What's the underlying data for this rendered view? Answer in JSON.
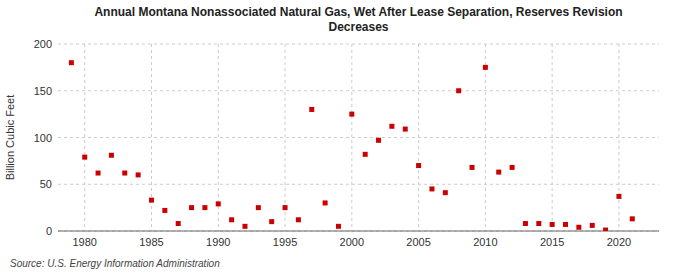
{
  "chart_data": {
    "type": "scatter",
    "title": "Annual Montana Nonassociated Natural Gas, Wet After Lease Separation, Reserves Revision\nDecreases",
    "ylabel": "Billion Cubic Feet",
    "annotations": [
      "Source: U.S. Energy Information Administration"
    ],
    "x": [
      1979,
      1980,
      1981,
      1982,
      1983,
      1984,
      1985,
      1986,
      1987,
      1988,
      1989,
      1990,
      1991,
      1992,
      1993,
      1994,
      1995,
      1996,
      1997,
      1998,
      1999,
      2000,
      2001,
      2002,
      2003,
      2004,
      2005,
      2006,
      2007,
      2008,
      2009,
      2010,
      2011,
      2012,
      2013,
      2014,
      2015,
      2016,
      2017,
      2018,
      2019,
      2020,
      2021
    ],
    "values": [
      180,
      79,
      62,
      81,
      62,
      60,
      33,
      22,
      8,
      25,
      25,
      29,
      12,
      5,
      25,
      10,
      25,
      12,
      130,
      30,
      5,
      125,
      82,
      97,
      112,
      109,
      70,
      45,
      41,
      150,
      68,
      175,
      63,
      68,
      8,
      8,
      7,
      7,
      4,
      6,
      1,
      37,
      13
    ],
    "color": "#cc0000",
    "marker": "square",
    "xlim": [
      1978,
      2023
    ],
    "ylim": [
      0,
      200
    ],
    "xticks": [
      1980,
      1985,
      1990,
      1995,
      2000,
      2005,
      2010,
      2015,
      2020
    ],
    "yticks": [
      0,
      50,
      100,
      150,
      200
    ],
    "grid": true
  }
}
